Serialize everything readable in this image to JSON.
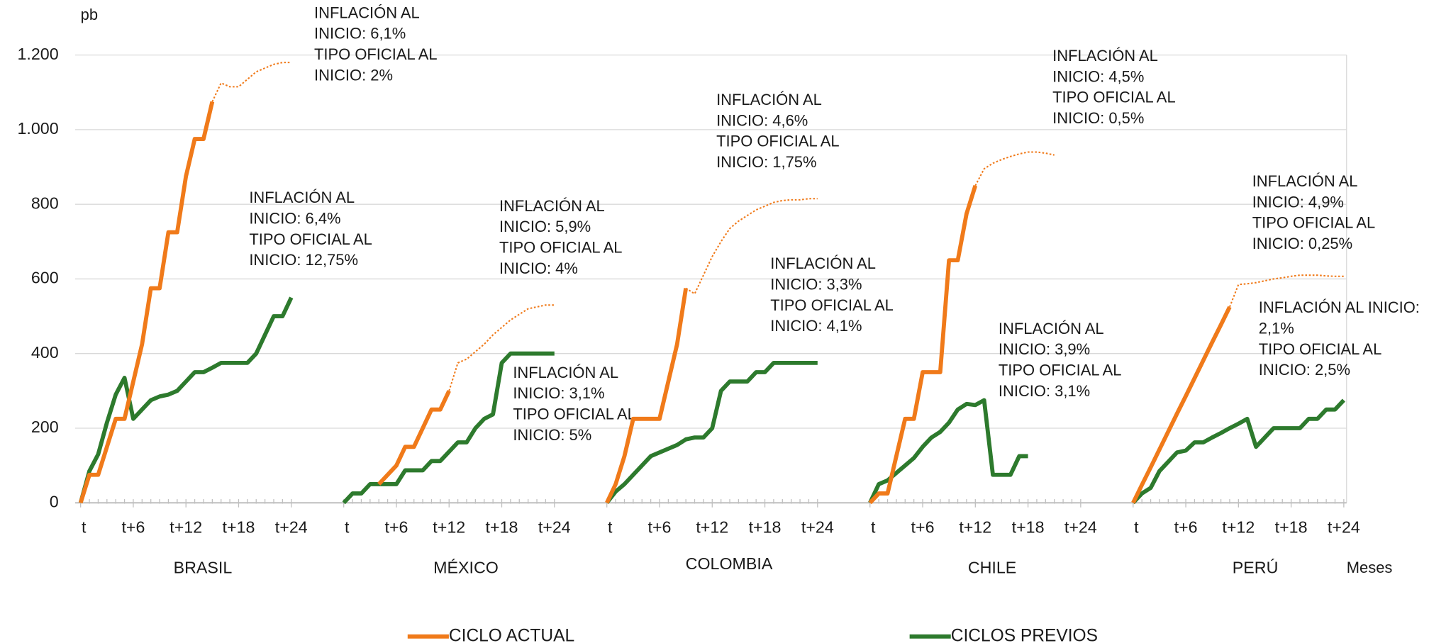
{
  "chart_data": {
    "type": "line",
    "y_label": "pb",
    "x_label": "Meses",
    "ylim": [
      0,
      1200
    ],
    "yticks": [
      0,
      200,
      400,
      600,
      800,
      {
        "value": 1000,
        "label": "1.000"
      },
      {
        "value": 1200,
        "label": "1.200"
      }
    ],
    "xlim": [
      0,
      24
    ],
    "grid": true,
    "series": [
      {
        "name": "CICLO ACTUAL",
        "color": "#f07a1a"
      },
      {
        "name": "CICLOS PREVIOS",
        "color": "#2d7a2d"
      }
    ],
    "panels": [
      {
        "label": "BRASIL",
        "xticks": [
          {
            "value": 0,
            "label": "t"
          },
          {
            "value": 6,
            "label": "t+6"
          },
          {
            "value": 12,
            "label": "t+12"
          },
          {
            "value": 18,
            "label": "t+18"
          },
          {
            "value": 24,
            "label": "t+24"
          }
        ],
        "actual": [
          0,
          75,
          75,
          150,
          225,
          225,
          325,
          425,
          575,
          575,
          725,
          725,
          875,
          975,
          975,
          1075,
          null,
          null,
          null,
          null,
          null,
          null,
          null,
          null,
          null
        ],
        "projected": [
          null,
          null,
          null,
          null,
          null,
          null,
          null,
          null,
          null,
          null,
          null,
          null,
          null,
          null,
          null,
          1075,
          1125,
          1115,
          1115,
          1135,
          1155,
          1165,
          1175,
          1180,
          1180
        ],
        "previous": [
          0,
          85,
          130,
          215,
          290,
          335,
          225,
          250,
          275,
          285,
          290,
          300,
          325,
          350,
          350,
          362,
          375,
          375,
          375,
          375,
          400,
          450,
          500,
          500,
          550
        ],
        "annotations": [
          {
            "lines": [
              "INFLACIÓN AL",
              "INICIO: 6,1%",
              "TIPO OFICIAL AL",
              "INICIO: 2%"
            ]
          },
          {
            "lines": [
              "INFLACIÓN AL",
              "INICIO: 6,4%",
              "TIPO OFICIAL AL",
              "INICIO: 12,75%"
            ]
          }
        ]
      },
      {
        "label": "MÉXICO",
        "xticks": [
          {
            "value": 0,
            "label": "t"
          },
          {
            "value": 6,
            "label": "t+6"
          },
          {
            "value": 12,
            "label": "t+12"
          },
          {
            "value": 18,
            "label": "t+18"
          },
          {
            "value": 24,
            "label": "t+24"
          }
        ],
        "actual": [
          null,
          null,
          null,
          null,
          50,
          75,
          100,
          150,
          150,
          200,
          250,
          250,
          300,
          null,
          null,
          null,
          null,
          null,
          null,
          null,
          null,
          null,
          null,
          null,
          null
        ],
        "projected": [
          null,
          null,
          null,
          null,
          null,
          null,
          null,
          null,
          null,
          null,
          null,
          null,
          300,
          375,
          385,
          405,
          425,
          450,
          470,
          490,
          505,
          520,
          525,
          530,
          530
        ],
        "previous": [
          0,
          25,
          25,
          50,
          50,
          50,
          50,
          87,
          87,
          87,
          112,
          112,
          137,
          162,
          162,
          200,
          225,
          237,
          375,
          400,
          400,
          400,
          400,
          400,
          400
        ],
        "annotations": [
          {
            "lines": [
              "INFLACIÓN AL",
              "INICIO: 5,9%",
              "TIPO OFICIAL AL",
              "INICIO: 4%"
            ]
          },
          {
            "lines": [
              "INFLACIÓN AL",
              "INICIO: 3,1%",
              "TIPO OFICIAL AL",
              "INICIO: 5%"
            ]
          }
        ]
      },
      {
        "label": "COLOMBIA",
        "xticks": [
          {
            "value": 0,
            "label": "t"
          },
          {
            "value": 6,
            "label": "t+6"
          },
          {
            "value": 12,
            "label": "t+12"
          },
          {
            "value": 18,
            "label": "t+18"
          },
          {
            "value": 24,
            "label": "t+24"
          }
        ],
        "actual": [
          0,
          50,
          125,
          225,
          225,
          225,
          225,
          325,
          425,
          575,
          null,
          null,
          null,
          null,
          null,
          null,
          null,
          null,
          null,
          null,
          null,
          null,
          null,
          null,
          null
        ],
        "projected": [
          null,
          null,
          null,
          null,
          null,
          null,
          null,
          null,
          null,
          575,
          560,
          610,
          660,
          700,
          735,
          755,
          770,
          785,
          795,
          805,
          810,
          812,
          812,
          815,
          815
        ],
        "previous": [
          0,
          30,
          50,
          75,
          100,
          125,
          135,
          145,
          155,
          170,
          175,
          175,
          200,
          300,
          325,
          325,
          325,
          350,
          350,
          375,
          375,
          375,
          375,
          375,
          375
        ],
        "annotations": [
          {
            "lines": [
              "INFLACIÓN AL",
              "INICIO: 4,6%",
              "TIPO OFICIAL AL",
              "INICIO: 1,75%"
            ]
          },
          {
            "lines": [
              "INFLACIÓN AL",
              "INICIO: 3,3%",
              "TIPO OFICIAL AL",
              "INICIO: 4,1%"
            ]
          }
        ]
      },
      {
        "label": "CHILE",
        "xticks": [
          {
            "value": 0,
            "label": "t"
          },
          {
            "value": 6,
            "label": "t+6"
          },
          {
            "value": 12,
            "label": "t+12"
          },
          {
            "value": 18,
            "label": "t+18"
          },
          {
            "value": 24,
            "label": "t+24"
          }
        ],
        "actual": [
          0,
          25,
          25,
          125,
          225,
          225,
          350,
          350,
          350,
          650,
          650,
          775,
          850,
          null,
          null,
          null,
          null,
          null,
          null,
          null,
          null,
          null,
          null,
          null,
          null
        ],
        "projected": [
          null,
          null,
          null,
          null,
          null,
          null,
          null,
          null,
          null,
          null,
          null,
          null,
          850,
          895,
          910,
          920,
          928,
          935,
          940,
          940,
          937,
          932,
          null,
          null,
          null
        ],
        "previous": [
          0,
          50,
          60,
          80,
          100,
          120,
          150,
          175,
          190,
          215,
          250,
          265,
          262,
          275,
          75,
          75,
          75,
          125,
          125,
          null,
          null,
          null,
          null,
          null,
          null
        ],
        "annotations": [
          {
            "lines": [
              "INFLACIÓN AL",
              "INICIO: 4,5%",
              "TIPO OFICIAL AL",
              "INICIO: 0,5%"
            ]
          },
          {
            "lines": [
              "INFLACIÓN AL",
              "INICIO: 3,9%",
              "TIPO OFICIAL AL",
              "INICIO: 3,1%"
            ]
          }
        ]
      },
      {
        "label": "PERÚ",
        "xticks": [
          {
            "value": 0,
            "label": "t"
          },
          {
            "value": 6,
            "label": "t+6"
          },
          {
            "value": 12,
            "label": "t+12"
          },
          {
            "value": 18,
            "label": "t+18"
          },
          {
            "value": 24,
            "label": "t+24"
          }
        ],
        "actual": [
          0,
          48,
          95,
          143,
          191,
          239,
          286,
          334,
          382,
          430,
          477,
          525,
          null,
          null,
          null,
          null,
          null,
          null,
          null,
          null,
          null,
          null,
          null,
          null,
          null
        ],
        "projected": [
          null,
          null,
          null,
          null,
          null,
          null,
          null,
          null,
          null,
          null,
          null,
          525,
          585,
          587,
          590,
          595,
          600,
          603,
          607,
          610,
          610,
          610,
          608,
          607,
          607
        ],
        "previous": [
          0,
          25,
          40,
          85,
          110,
          135,
          140,
          162,
          162,
          175,
          187,
          200,
          212,
          225,
          150,
          175,
          200,
          200,
          200,
          200,
          225,
          225,
          250,
          250,
          275
        ],
        "annotations": [
          {
            "lines": [
              "INFLACIÓN AL",
              "INICIO: 4,9%",
              "TIPO OFICIAL AL",
              "INICIO: 0,25%"
            ]
          },
          {
            "lines": [
              "INFLACIÓN AL INICIO:",
              "2,1%",
              "TIPO OFICIAL AL",
              "INICIO: 2,5%"
            ]
          }
        ]
      }
    ]
  }
}
